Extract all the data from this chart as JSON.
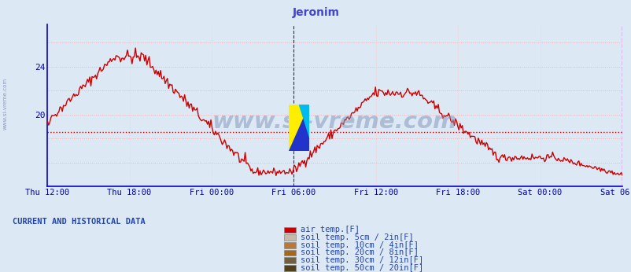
{
  "title": "Jeronim",
  "title_color": "#4444cc",
  "bg_color": "#dce9f5",
  "plot_bg_color": "#dce9f5",
  "line_color": "#cc0000",
  "line_width": 1.0,
  "dashed_hline_y": 18.5,
  "dashed_hline_color": "#cc0000",
  "ylim": [
    14.0,
    27.5
  ],
  "ytick_positions": [
    20,
    24
  ],
  "ytick_labels": [
    "20",
    "24"
  ],
  "grid_color_h": "#ffaaaa",
  "grid_color_v": "#ffcccc",
  "xticklabels": [
    "Thu 12:00",
    "Thu 18:00",
    "Fri 00:00",
    "Fri 06:00",
    "Fri 12:00",
    "Fri 18:00",
    "Sat 00:00",
    "Sat 06:00"
  ],
  "xtick_positions": [
    0,
    6,
    12,
    18,
    24,
    30,
    36,
    42
  ],
  "axis_color": "#0000cc",
  "tick_color": "#0000aa",
  "black_vline_x": 18,
  "magenta_vline_x": 42,
  "watermark": "www.si-vreme.com",
  "watermark_color": "#8899bb",
  "watermark_alpha": 0.55,
  "legend_title": "CURRENT AND HISTORICAL DATA",
  "legend_title_color": "#2244aa",
  "legend_items": [
    {
      "label": "air temp.[F]",
      "color": "#cc0000"
    },
    {
      "label": "soil temp. 5cm / 2in[F]",
      "color": "#c8b8a8"
    },
    {
      "label": "soil temp. 10cm / 4in[F]",
      "color": "#b87838"
    },
    {
      "label": "soil temp. 20cm / 8in[F]",
      "color": "#a06820"
    },
    {
      "label": "soil temp. 30cm / 12in[F]",
      "color": "#706040"
    },
    {
      "label": "soil temp. 50cm / 20in[F]",
      "color": "#504020"
    }
  ]
}
